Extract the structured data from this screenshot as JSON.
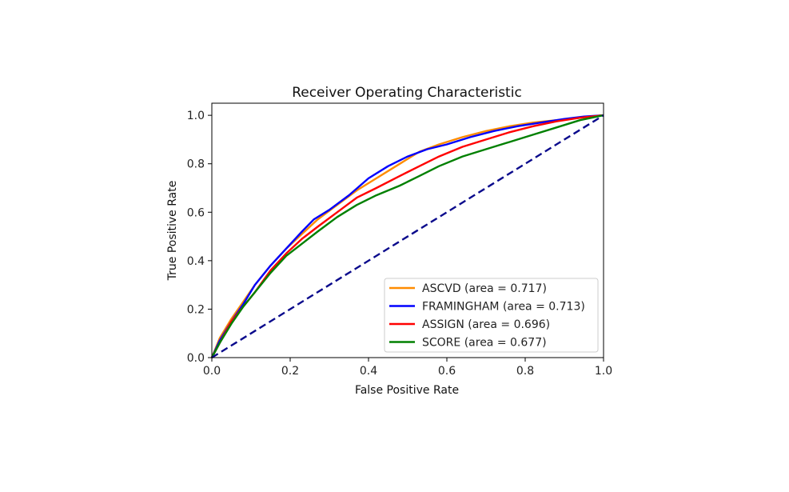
{
  "chart_data": {
    "type": "line",
    "title": "Receiver Operating Characteristic",
    "xlabel": "False Positive Rate",
    "ylabel": "True Positive Rate",
    "xlim": [
      0.0,
      1.0
    ],
    "ylim": [
      0.0,
      1.05
    ],
    "xticks": [
      "0.0",
      "0.2",
      "0.4",
      "0.6",
      "0.8",
      "1.0"
    ],
    "yticks": [
      "0.0",
      "0.2",
      "0.4",
      "0.6",
      "0.8",
      "1.0"
    ],
    "grid": false,
    "legend_position": "bottom-right",
    "baseline": {
      "color": "#0a0a8c",
      "style": "dashed",
      "x": [
        0.0,
        1.0
      ],
      "y": [
        0.0,
        1.0
      ]
    },
    "series": [
      {
        "name": "ASCVD (area = 0.717)",
        "color": "#ff8c00",
        "x": [
          0.0,
          0.02,
          0.05,
          0.08,
          0.11,
          0.15,
          0.19,
          0.23,
          0.27,
          0.32,
          0.37,
          0.42,
          0.48,
          0.53,
          0.58,
          0.64,
          0.7,
          0.76,
          0.82,
          0.88,
          0.94,
          1.0
        ],
        "y": [
          0.0,
          0.08,
          0.16,
          0.23,
          0.3,
          0.38,
          0.45,
          0.51,
          0.57,
          0.63,
          0.69,
          0.74,
          0.8,
          0.85,
          0.88,
          0.91,
          0.935,
          0.955,
          0.97,
          0.98,
          0.99,
          1.0
        ]
      },
      {
        "name": "FRAMINGHAM (area = 0.713)",
        "color": "#0000ff",
        "x": [
          0.0,
          0.02,
          0.05,
          0.08,
          0.11,
          0.15,
          0.19,
          0.23,
          0.26,
          0.3,
          0.35,
          0.4,
          0.45,
          0.5,
          0.55,
          0.6,
          0.66,
          0.72,
          0.78,
          0.84,
          0.9,
          0.95,
          1.0
        ],
        "y": [
          0.0,
          0.07,
          0.15,
          0.22,
          0.3,
          0.38,
          0.45,
          0.52,
          0.57,
          0.61,
          0.67,
          0.74,
          0.79,
          0.83,
          0.86,
          0.88,
          0.91,
          0.935,
          0.955,
          0.97,
          0.985,
          0.995,
          1.0
        ]
      },
      {
        "name": "ASSIGN (area = 0.696)",
        "color": "#ff0000",
        "x": [
          0.0,
          0.02,
          0.05,
          0.08,
          0.11,
          0.15,
          0.19,
          0.23,
          0.27,
          0.32,
          0.37,
          0.42,
          0.48,
          0.53,
          0.58,
          0.64,
          0.7,
          0.76,
          0.82,
          0.88,
          0.94,
          1.0
        ],
        "y": [
          0.0,
          0.06,
          0.15,
          0.21,
          0.27,
          0.36,
          0.43,
          0.49,
          0.54,
          0.6,
          0.66,
          0.7,
          0.75,
          0.79,
          0.83,
          0.87,
          0.9,
          0.93,
          0.955,
          0.975,
          0.99,
          1.0
        ]
      },
      {
        "name": "SCORE (area = 0.677)",
        "color": "#008000",
        "x": [
          0.0,
          0.02,
          0.05,
          0.08,
          0.11,
          0.15,
          0.19,
          0.23,
          0.27,
          0.32,
          0.37,
          0.42,
          0.48,
          0.53,
          0.58,
          0.64,
          0.7,
          0.76,
          0.82,
          0.88,
          0.94,
          1.0
        ],
        "y": [
          0.0,
          0.06,
          0.14,
          0.21,
          0.27,
          0.35,
          0.42,
          0.47,
          0.52,
          0.58,
          0.63,
          0.67,
          0.71,
          0.75,
          0.79,
          0.83,
          0.86,
          0.89,
          0.92,
          0.95,
          0.98,
          1.0
        ]
      }
    ]
  }
}
